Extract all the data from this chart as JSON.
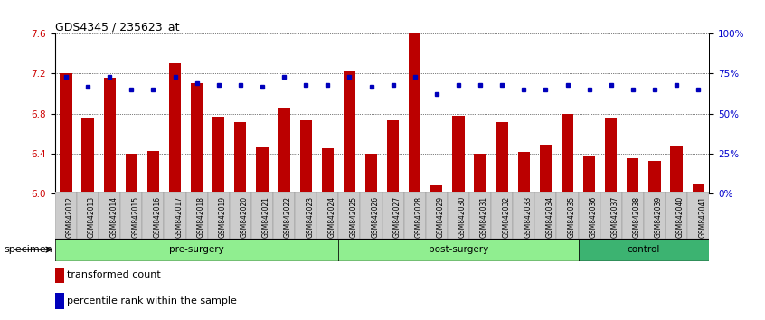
{
  "title": "GDS4345 / 235623_at",
  "samples": [
    "GSM842012",
    "GSM842013",
    "GSM842014",
    "GSM842015",
    "GSM842016",
    "GSM842017",
    "GSM842018",
    "GSM842019",
    "GSM842020",
    "GSM842021",
    "GSM842022",
    "GSM842023",
    "GSM842024",
    "GSM842025",
    "GSM842026",
    "GSM842027",
    "GSM842028",
    "GSM842029",
    "GSM842030",
    "GSM842031",
    "GSM842032",
    "GSM842033",
    "GSM842034",
    "GSM842035",
    "GSM842036",
    "GSM842037",
    "GSM842038",
    "GSM842039",
    "GSM842040",
    "GSM842041"
  ],
  "bar_values": [
    7.2,
    6.75,
    7.16,
    6.4,
    6.43,
    7.3,
    7.1,
    6.77,
    6.72,
    6.46,
    6.86,
    6.73,
    6.45,
    7.22,
    6.4,
    6.73,
    7.6,
    6.08,
    6.78,
    6.4,
    6.72,
    6.42,
    6.49,
    6.8,
    6.37,
    6.76,
    6.35,
    6.33,
    6.47,
    6.1
  ],
  "percentile_values": [
    73,
    67,
    73,
    65,
    65,
    73,
    69,
    68,
    68,
    67,
    73,
    68,
    68,
    73,
    67,
    68,
    73,
    62,
    68,
    68,
    68,
    65,
    65,
    68,
    65,
    68,
    65,
    65,
    68,
    65
  ],
  "groups": [
    {
      "label": "pre-surgery",
      "start": 0,
      "end": 13,
      "color": "#90EE90"
    },
    {
      "label": "post-surgery",
      "start": 13,
      "end": 24,
      "color": "#90EE90"
    },
    {
      "label": "control",
      "start": 24,
      "end": 30,
      "color": "#3CB371"
    }
  ],
  "ylim_left": [
    6.0,
    7.6
  ],
  "ylim_right": [
    0,
    100
  ],
  "yticks_left": [
    6.0,
    6.4,
    6.8,
    7.2,
    7.6
  ],
  "yticks_right": [
    0,
    25,
    50,
    75,
    100
  ],
  "ytick_labels_right": [
    "0%",
    "25%",
    "50%",
    "75%",
    "100%"
  ],
  "bar_color": "#BB0000",
  "dot_color": "#0000BB",
  "bar_width": 0.55,
  "bg_color": "#FFFFFF",
  "plot_bg_color": "#FFFFFF",
  "grid_color": "#000000",
  "tick_label_color_left": "#CC0000",
  "tick_label_color_right": "#0000CC",
  "legend_bar_label": "transformed count",
  "legend_dot_label": "percentile rank within the sample",
  "specimen_label": "specimen",
  "xticklabel_bg": "#CCCCCC"
}
